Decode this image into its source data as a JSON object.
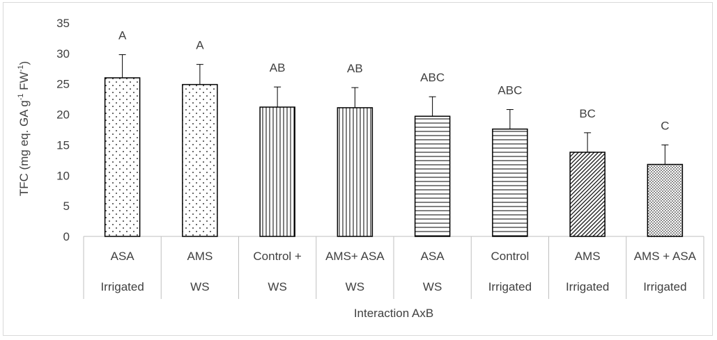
{
  "chart_data": {
    "type": "bar",
    "ylabel_main": "TFC (mg eq. GA g",
    "ylabel_sup1": "-1",
    "ylabel_mid": " FW",
    "ylabel_sup2": "-1",
    "ylabel_end": ")",
    "xlabel": "Interaction AxB",
    "ylim": [
      0,
      35
    ],
    "yticks": [
      0,
      5,
      10,
      15,
      20,
      25,
      30,
      35
    ],
    "grid": false,
    "categories": [
      {
        "top": "ASA",
        "bottom": "Irrigated"
      },
      {
        "top": "AMS",
        "bottom": "WS"
      },
      {
        "top": "Control +",
        "bottom": "WS"
      },
      {
        "top": "AMS+ ASA",
        "bottom": "WS"
      },
      {
        "top": "ASA",
        "bottom": "WS"
      },
      {
        "top": "Control",
        "bottom": "Irrigated"
      },
      {
        "top": "AMS",
        "bottom": "Irrigated"
      },
      {
        "top": "AMS + ASA",
        "bottom": "Irrigated"
      }
    ],
    "values": [
      26.0,
      24.9,
      21.2,
      21.1,
      19.7,
      17.6,
      13.8,
      11.8
    ],
    "errors": [
      3.8,
      3.3,
      3.3,
      3.3,
      3.2,
      3.2,
      3.2,
      3.2
    ],
    "letters": [
      "A",
      "A",
      "AB",
      "AB",
      "ABC",
      "ABC",
      "BC",
      "C"
    ],
    "patterns": [
      "dots-sparse",
      "dots-sparse",
      "vertical-lines",
      "vertical-lines",
      "horizontal-lines",
      "horizontal-lines",
      "diagonal-lines",
      "dots-dense"
    ],
    "colors": {
      "bar_fill": "#ffffff",
      "bar_stroke": "#000000",
      "axis": "#bfbfbf",
      "text": "#404040"
    }
  }
}
